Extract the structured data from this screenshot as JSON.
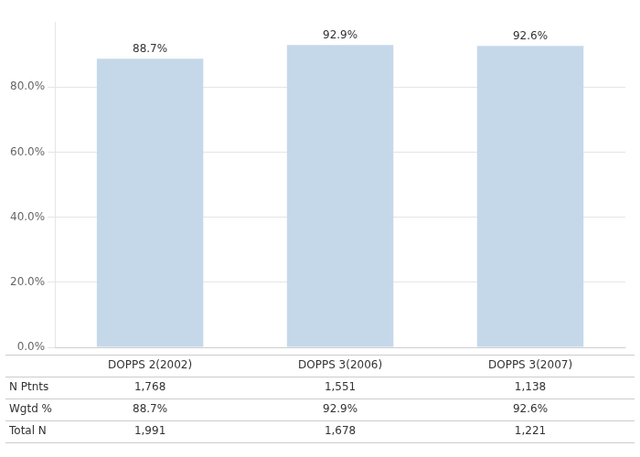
{
  "chart_data": {
    "type": "bar",
    "categories": [
      "DOPPS 2(2002)",
      "DOPPS 3(2006)",
      "DOPPS 3(2007)"
    ],
    "values": [
      88.7,
      92.9,
      92.6
    ],
    "value_labels": [
      "88.7%",
      "92.9%",
      "92.6%"
    ],
    "data_labels": true,
    "color": "#c5d8ea",
    "ylim": [
      0,
      100
    ],
    "yticks": [
      {
        "value": 0,
        "label": "0.0%"
      },
      {
        "value": 20,
        "label": "20.0%"
      },
      {
        "value": 40,
        "label": "40.0%"
      },
      {
        "value": 60,
        "label": "60.0%"
      },
      {
        "value": 80,
        "label": "80.0%"
      }
    ],
    "grid": true,
    "table_rows": [
      "N Ptnts",
      "Wgtd %",
      "Total N"
    ],
    "table_data": [
      [
        "1,768",
        "1,551",
        "1,138"
      ],
      [
        "88.7%",
        "92.9%",
        "92.6%"
      ],
      [
        "1,991",
        "1,678",
        "1,221"
      ]
    ]
  }
}
